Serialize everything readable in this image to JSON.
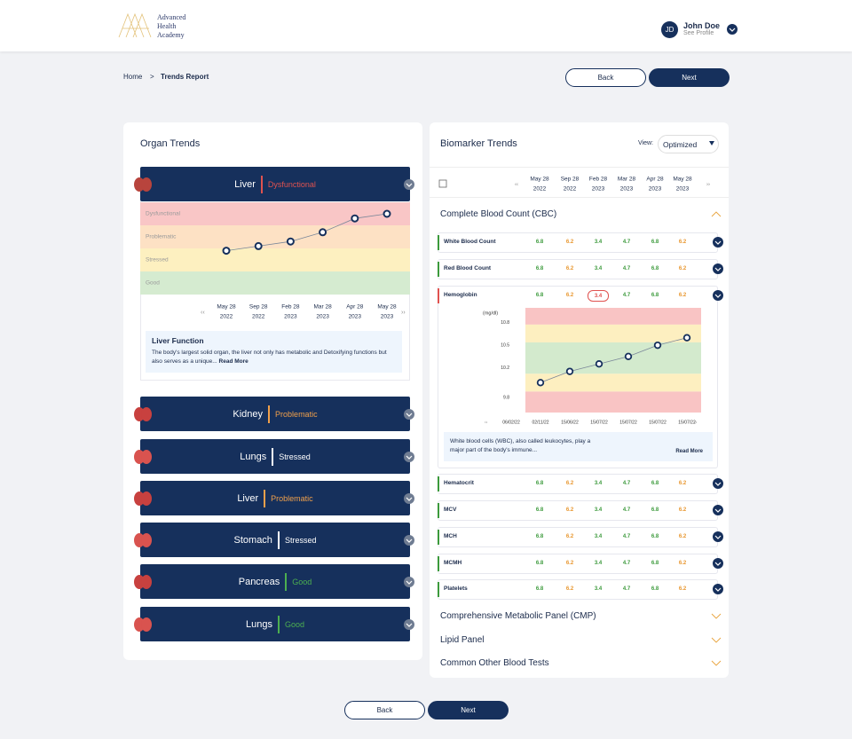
{
  "header": {
    "logo": [
      "Advanced",
      "Health",
      "Academy"
    ],
    "user": {
      "initials": "JD",
      "name": "John Doe",
      "link": "See Profile"
    }
  },
  "breadcrumb": {
    "home": "Home",
    "separator": ">",
    "current": "Trends Report"
  },
  "buttons": {
    "back": "Back",
    "next": "Next"
  },
  "nav": {
    "prev": "‹‹",
    "next": "››"
  },
  "organ_trends": {
    "title": "Organ Trends",
    "expanded": {
      "organ": "Liver",
      "status": "Dysfunctional",
      "status_color": "#e0524f",
      "chart_data": {
        "type": "line",
        "zones": [
          {
            "label": "Dysfunctional",
            "color": "#f9c6c6"
          },
          {
            "label": "Problematic",
            "color": "#fde1c4"
          },
          {
            "label": "Stressed",
            "color": "#fdf0c0"
          },
          {
            "label": "Good",
            "color": "#d5ebd0"
          }
        ],
        "categories": [
          [
            "May 28",
            "2022"
          ],
          [
            "Sep 28",
            "2022"
          ],
          [
            "Feb 28",
            "2023"
          ],
          [
            "Mar 28",
            "2023"
          ],
          [
            "Apr 28",
            "2023"
          ],
          [
            "May 28",
            "2023"
          ]
        ],
        "values": [
          1.9,
          2.1,
          2.3,
          2.7,
          3.3,
          3.5
        ],
        "ylim": [
          0,
          4
        ],
        "color": "#7a8799"
      },
      "info": {
        "title": "Liver Function",
        "text": "The body's largest solid organ, the liver not only has metabolic and Detoxifying functions but also serves as a unique...",
        "read_more": "Read More"
      }
    },
    "items": [
      {
        "organ": "Kidney",
        "status": "Problematic",
        "status_color": "#f0a04b",
        "icon": "#c8413f"
      },
      {
        "organ": "Lungs",
        "status": "Stressed",
        "status_color": "#ffffff",
        "icon": "#d9534f"
      },
      {
        "organ": "Liver",
        "status": "Problematic",
        "status_color": "#f0a04b",
        "icon": "#c8413f"
      },
      {
        "organ": "Stomach",
        "status": "Stressed",
        "status_color": "#ffffff",
        "icon": "#d9534f"
      },
      {
        "organ": "Pancreas",
        "status": "Good",
        "status_color": "#4caf50",
        "icon": "#c8413f"
      },
      {
        "organ": "Lungs",
        "status": "Good",
        "status_color": "#4caf50",
        "icon": "#d9534f"
      }
    ]
  },
  "biomarker_trends": {
    "title": "Biomarker Trends",
    "view_label": "View:",
    "view": "Optimized",
    "dates": [
      [
        "May 28",
        "2022"
      ],
      [
        "Sep 28",
        "2022"
      ],
      [
        "Feb 28",
        "2023"
      ],
      [
        "Mar 28",
        "2023"
      ],
      [
        "Apr 28",
        "2023"
      ],
      [
        "May 28",
        "2023"
      ]
    ],
    "group": {
      "title": "Complete Blood Count (CBC)",
      "value_colors": [
        "#3c9a3c",
        "#e8962e",
        "#3c9a3c",
        "#3c9a3c",
        "#3c9a3c",
        "#e8962e"
      ],
      "rows": [
        {
          "name": "White Blood Count",
          "marker": "#3c9a3c",
          "values": [
            "6.8",
            "6.2",
            "3.4",
            "4.7",
            "6.8",
            "6.2"
          ]
        },
        {
          "name": "Red Blood Count",
          "marker": "#3c9a3c",
          "values": [
            "6.8",
            "6.2",
            "3.4",
            "4.7",
            "6.8",
            "6.2"
          ]
        },
        {
          "name": "Hemoglobin",
          "marker": "#e0524f",
          "values": [
            "6.8",
            "6.2",
            "3.4",
            "4.7",
            "6.8",
            "6.2"
          ],
          "highlight": 2
        },
        {
          "name": "Hematocrit",
          "marker": "#3c9a3c",
          "values": [
            "6.8",
            "6.2",
            "3.4",
            "4.7",
            "6.8",
            "6.2"
          ]
        },
        {
          "name": "MCV",
          "marker": "#3c9a3c",
          "values": [
            "6.8",
            "6.2",
            "3.4",
            "4.7",
            "6.8",
            "6.2"
          ]
        },
        {
          "name": "MCH",
          "marker": "#3c9a3c",
          "values": [
            "6.8",
            "6.2",
            "3.4",
            "4.7",
            "6.8",
            "6.2"
          ]
        },
        {
          "name": "MCMH",
          "marker": "#3c9a3c",
          "values": [
            "6.8",
            "6.2",
            "3.4",
            "4.7",
            "6.8",
            "6.2"
          ]
        },
        {
          "name": "Platelets",
          "marker": "#3c9a3c",
          "values": [
            "6.8",
            "6.2",
            "3.4",
            "4.7",
            "6.8",
            "6.2"
          ]
        }
      ],
      "expanded": {
        "unit": "(mg/dl)",
        "chart_data": {
          "type": "line",
          "categories": [
            "06/02/22",
            "02/11/22",
            "15/06/22",
            "15/07/22",
            "15/07/22",
            "15/07/22",
            "15/07/22"
          ],
          "values": [
            null,
            10.0,
            10.15,
            10.25,
            10.35,
            10.5,
            10.6
          ],
          "ylim": [
            9.6,
            11.0
          ],
          "yticks": [
            9.8,
            10.2,
            10.5,
            10.8
          ],
          "color": "#7a8799"
        },
        "text": "White blood cells (WBC), also called leukocytes, play a major part of the body's immune...",
        "read_more": "Read More"
      }
    },
    "sections": [
      "Comprehensive Metabolic Panel (CMP)",
      "Lipid Panel",
      "Common Other Blood Tests"
    ]
  }
}
